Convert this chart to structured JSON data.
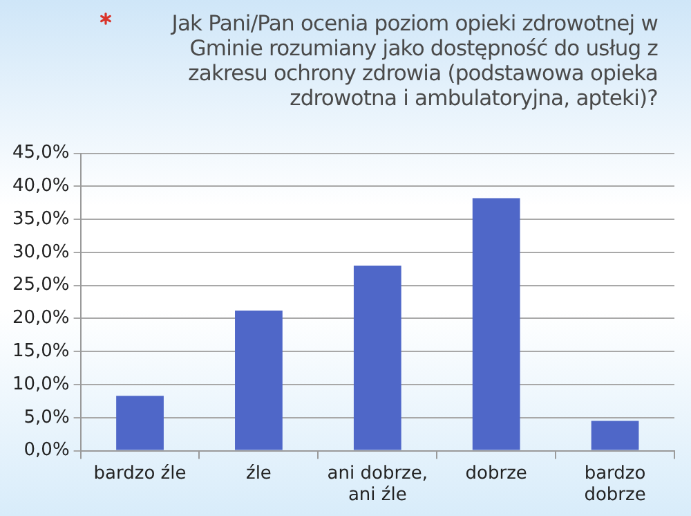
{
  "chart_data": {
    "type": "bar",
    "title": "Jak Pani/Pan ocenia poziom opieki zdrowotnej w Gminie rozumiany jako dostępność do usług z zakresu ochrony zdrowia (podstawowa opieka zdrowotna i ambulatoryjna, apteki)?",
    "categories": [
      "bardzo źle",
      "źle",
      "ani dobrze, ani źle",
      "dobrze",
      "bardzo dobrze"
    ],
    "values": [
      8.3,
      21.2,
      28.0,
      38.2,
      4.5
    ],
    "color": "#4f67c8",
    "ylim": [
      0,
      45
    ],
    "yticks": [
      {
        "value": 0,
        "label": "0,0%"
      },
      {
        "value": 5,
        "label": "5,0%"
      },
      {
        "value": 10,
        "label": "10,0%"
      },
      {
        "value": 15,
        "label": "15,0%"
      },
      {
        "value": 20,
        "label": "20,0%"
      },
      {
        "value": 25,
        "label": "25,0%"
      },
      {
        "value": 30,
        "label": "30,0%"
      },
      {
        "value": 35,
        "label": "35,0%"
      },
      {
        "value": 40,
        "label": "40,0%"
      },
      {
        "value": 45,
        "label": "45,0%"
      }
    ],
    "grid": "y",
    "legend": false
  }
}
